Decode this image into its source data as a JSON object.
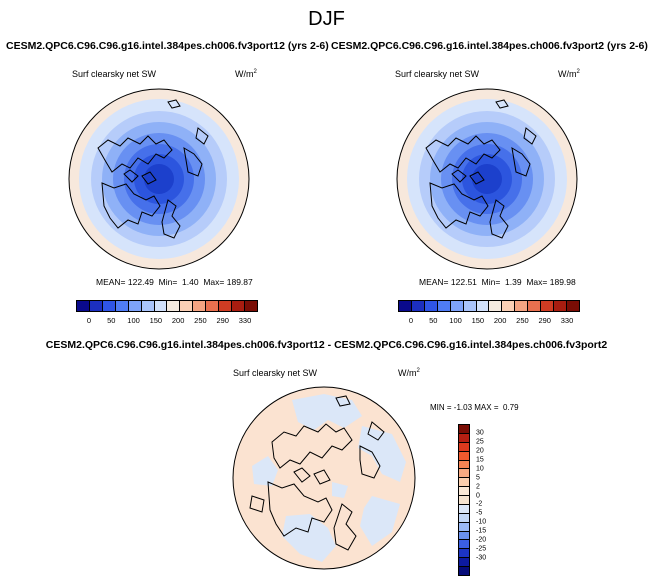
{
  "page": {
    "title": "DJF"
  },
  "top_panels": [
    {
      "title": "CESM2.QPC6.C96.C96.g16.intel.384pes.ch006.fv3port12 (yrs 2-6)",
      "variable": "Surf clearsky net SW",
      "units": "W/m",
      "units_sup": "2",
      "stats": {
        "mean_label": "MEAN=",
        "mean": "122.49",
        "min_label": "Min=",
        "min": "1.40",
        "max_label": "Max=",
        "max": "189.87"
      }
    },
    {
      "title": "CESM2.QPC6.C96.C96.g16.intel.384pes.ch006.fv3port2 (yrs 2-6)",
      "variable": "Surf clearsky net SW",
      "units": "W/m",
      "units_sup": "2",
      "stats": {
        "mean_label": "MEAN=",
        "mean": "122.51",
        "min_label": "Min=",
        "min": "1.39",
        "max_label": "Max=",
        "max": "189.98"
      }
    }
  ],
  "top_colorbar": {
    "colors": [
      "#0a0a8c",
      "#1c2fbf",
      "#2f55e6",
      "#4f7cf5",
      "#7ea3fa",
      "#a9c4fb",
      "#d2e1fb",
      "#f5ebe0",
      "#fbd0b5",
      "#f4a482",
      "#e8704f",
      "#cf3c23",
      "#a81d10",
      "#7a0d05"
    ],
    "ticks": [
      "0",
      "50",
      "100",
      "150",
      "200",
      "250",
      "290",
      "330"
    ]
  },
  "diff_panel": {
    "title": "CESM2.QPC6.C96.C96.g16.intel.384pes.ch006.fv3port12 - CESM2.QPC6.C96.C96.g16.intel.384pes.ch006.fv3port2",
    "variable": "Surf clearsky net SW",
    "units": "W/m",
    "units_sup": "2",
    "stats": {
      "min_label": "MIN =",
      "min": "-1.03",
      "max_label": "MAX =",
      "max": "0.79"
    }
  },
  "diff_colorbar": {
    "colors": [
      "#7a0d05",
      "#b51f12",
      "#dc3a1e",
      "#ef5a2e",
      "#f68454",
      "#f9aa82",
      "#fccfae",
      "#fae8d6",
      "#f5e3cf",
      "#dbe7f8",
      "#c3d8f7",
      "#9bbaf6",
      "#6a91f0",
      "#3b5fe3",
      "#1c34c4",
      "#0d1aa0",
      "#060c7a"
    ],
    "ticks": [
      "30",
      "25",
      "20",
      "15",
      "10",
      "5",
      "2",
      "0",
      "-2",
      "-5",
      "-10",
      "-15",
      "-20",
      "-25",
      "-30"
    ]
  },
  "map_legend": {
    "top_rings": [
      "#f7e8dc",
      "#d6e4fb",
      "#b6ccfa",
      "#8fb1f7",
      "#6890f2",
      "#4670ea",
      "#2c55de",
      "#1c40cc"
    ],
    "diff_background": "#fbe3d1",
    "diff_negative": "#dbe7f8",
    "coastline": "#000000"
  }
}
